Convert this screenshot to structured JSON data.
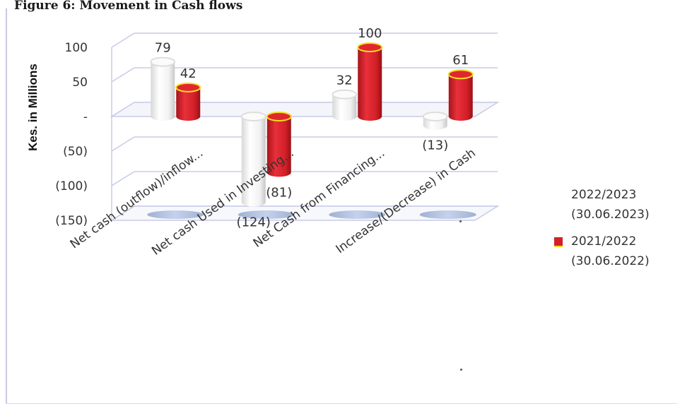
{
  "page": {
    "caption": "Figure 6: Movement in Cash flows"
  },
  "chart_data": {
    "type": "bar",
    "style": "3d-cylinder",
    "ylabel": "Kes. in Millions",
    "ylim": [
      -150,
      100
    ],
    "yticks": [
      {
        "value": 100,
        "label": "100"
      },
      {
        "value": 50,
        "label": "50"
      },
      {
        "value": 0,
        "label": "-"
      },
      {
        "value": -50,
        "label": "(50)"
      },
      {
        "value": -100,
        "label": "(100)"
      },
      {
        "value": -150,
        "label": "(150)"
      }
    ],
    "categories": [
      "Net cash (outflow)/inflow...",
      "Net cash Used in Investing...",
      "Net Cash from Financing...",
      "Increase/(Decrease) in Cash"
    ],
    "series": [
      {
        "name": "2022/2023 (30.06.2023)",
        "legend_lines": [
          "2022/2023",
          "(30.06.2023)"
        ],
        "color": "#f4f4f4",
        "values": [
          79,
          -124,
          32,
          -13
        ],
        "labels": [
          "79",
          "(124)",
          "32",
          "(13)"
        ]
      },
      {
        "name": "2021/2022 (30.06.2022)",
        "legend_lines": [
          "2021/2022",
          "(30.06.2022)"
        ],
        "color": "#d42028",
        "rim_color": "#f0e020",
        "values": [
          42,
          -81,
          100,
          61
        ],
        "labels": [
          "42",
          "(81)",
          "100",
          "61"
        ]
      }
    ],
    "grid": true,
    "legend": "right"
  }
}
